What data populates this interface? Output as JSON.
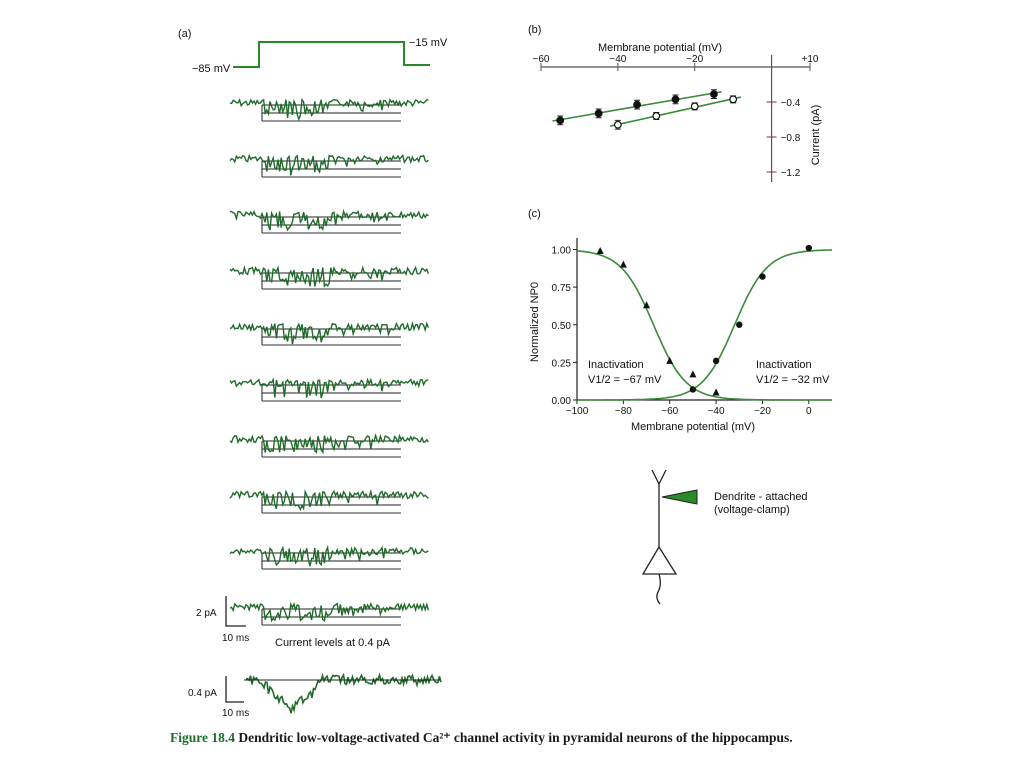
{
  "colors": {
    "trace": "#1f6b2a",
    "fit": "#3a8a3a",
    "axis": "#222222",
    "accent": "#2a8a2a"
  },
  "panel_a": {
    "label": "(a)",
    "protocol_low": "−85 mV",
    "protocol_high": "−15 mV",
    "trace_count": 10,
    "scalebar_1_y": "2 pA",
    "scalebar_1_x": "10 ms",
    "levels_note": "Current levels at 0.4 pA",
    "scalebar_2_y": "0.4 pA",
    "scalebar_2_x": "10 ms"
  },
  "diagram": {
    "electrode_label_1": "Dendrite - attached",
    "electrode_label_2": "(voltage-clamp)"
  },
  "caption": {
    "fig": "Figure 18.4",
    "text": "Dendritic low-voltage-activated Ca²⁺ channel activity in pyramidal neurons of the hippocampus."
  },
  "chart_data": [
    {
      "panel": "(b)",
      "type": "line",
      "xlabel": "Membrane potential (mV)",
      "ylabel": "Current (pA)",
      "xlim": [
        -60,
        10
      ],
      "ylim": [
        -1.2,
        0
      ],
      "x_ticks": [
        -60,
        -40,
        -20,
        10
      ],
      "x_tick_labels": [
        "−60",
        "−40",
        "−20",
        "+10"
      ],
      "y_ticks": [
        -0.4,
        -0.8,
        -1.2
      ],
      "y_tick_labels": [
        "−0.4",
        "−0.8",
        "−1.2"
      ],
      "grid": false,
      "series": [
        {
          "marker": "filled",
          "x": [
            -55,
            -45,
            -35,
            -25,
            -15
          ],
          "y": [
            -0.61,
            -0.53,
            -0.43,
            -0.37,
            -0.31
          ],
          "err": [
            0.05,
            0.05,
            0.05,
            0.05,
            0.05
          ]
        },
        {
          "marker": "open",
          "x": [
            -40,
            -30,
            -20,
            -10
          ],
          "y": [
            -0.66,
            -0.56,
            -0.45,
            -0.37
          ],
          "err": [
            0.05,
            0.04,
            0.04,
            0.04
          ]
        }
      ]
    },
    {
      "panel": "(c)",
      "type": "scatter",
      "xlabel": "Membrane potential (mV)",
      "ylabel": "Normalized NP0",
      "xlim": [
        -100,
        10
      ],
      "ylim": [
        0,
        1.05
      ],
      "x_ticks": [
        -100,
        -80,
        -60,
        -40,
        -20,
        0
      ],
      "x_tick_labels": [
        "−100",
        "−80",
        "−60",
        "−40",
        "−20",
        "0"
      ],
      "y_ticks": [
        0,
        0.25,
        0.5,
        0.75,
        1.0
      ],
      "y_tick_labels": [
        "0.00",
        "0.25",
        "0.50",
        "0.75",
        "1.00"
      ],
      "grid": false,
      "series": [
        {
          "marker": "triangle",
          "x": [
            -90,
            -80,
            -70,
            -60,
            -50,
            -40
          ],
          "y": [
            0.99,
            0.9,
            0.63,
            0.26,
            0.17,
            0.05
          ]
        },
        {
          "marker": "circle",
          "x": [
            -50,
            -40,
            -30,
            -20,
            0
          ],
          "y": [
            0.07,
            0.26,
            0.5,
            0.82,
            1.01
          ]
        }
      ],
      "fits": [
        {
          "v_half": -67,
          "slope": 7,
          "direction": "decreasing"
        },
        {
          "v_half": -32,
          "slope": 7,
          "direction": "increasing"
        }
      ],
      "annotations": [
        {
          "text": "Inactivation",
          "sub": "V1/2 = −67 mV"
        },
        {
          "text": "Inactivation",
          "sub": "V1/2 = −32 mV"
        }
      ]
    }
  ]
}
